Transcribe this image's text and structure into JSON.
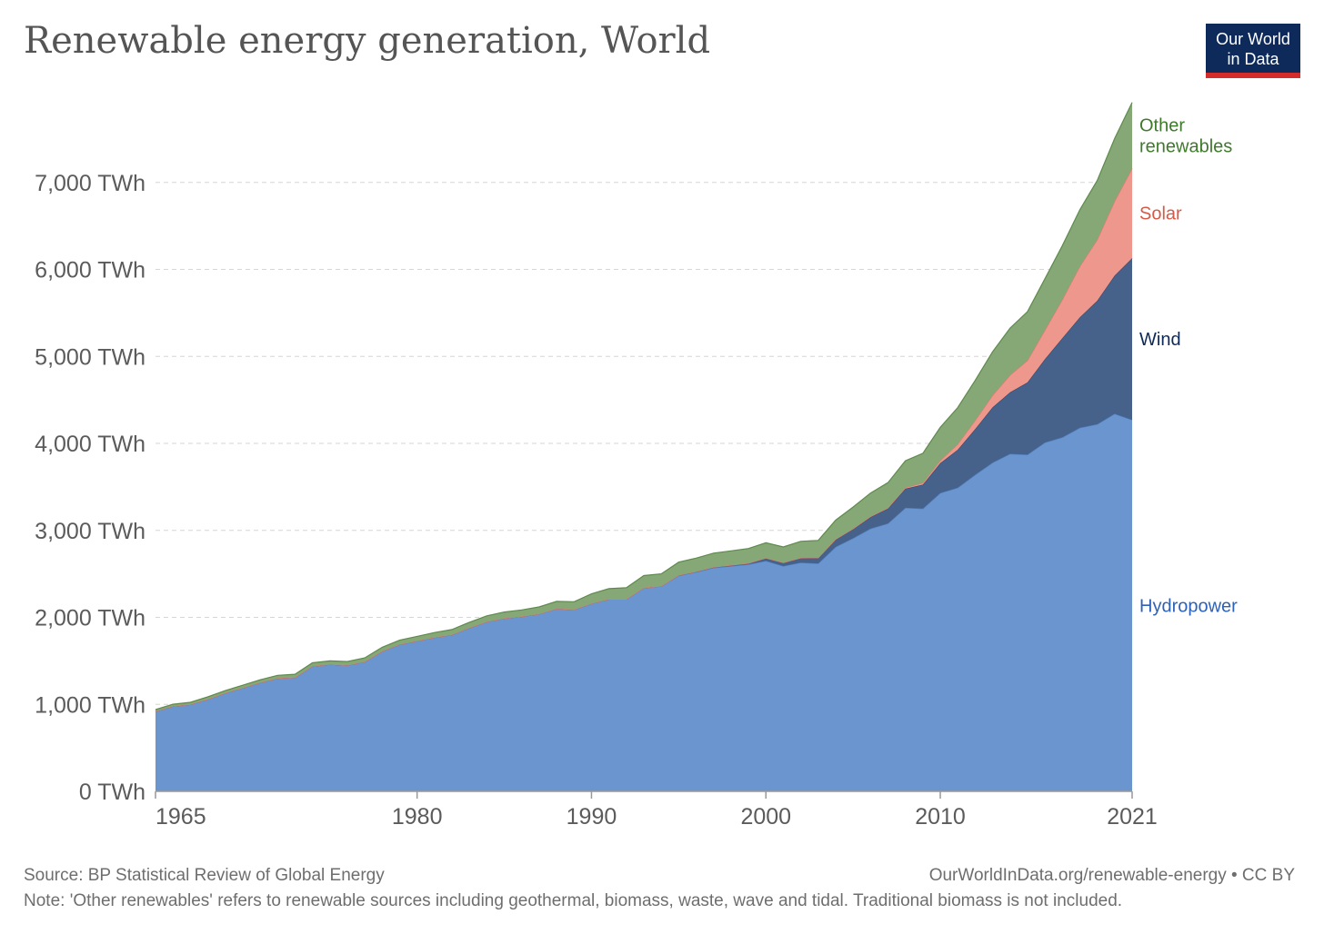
{
  "title": "Renewable energy generation, World",
  "logo": {
    "line1": "Our World",
    "line2": "in Data",
    "bg_color": "#0e2a5a",
    "accent_color": "#d42b2b"
  },
  "footer": {
    "source": "Source: BP Statistical Review of Global Energy",
    "url": "OurWorldInData.org/renewable-energy • CC BY",
    "note": "Note: 'Other renewables' refers to renewable sources including geothermal, biomass, waste, wave and tidal. Traditional biomass is not included."
  },
  "chart_data": {
    "type": "area",
    "stacked": true,
    "grid": true,
    "x_ticks": [
      1965,
      1980,
      1990,
      2000,
      2010,
      2021
    ],
    "x_tick_labels": [
      "1965",
      "1980",
      "1990",
      "2000",
      "2010",
      "2021"
    ],
    "y_ticks": [
      0,
      1000,
      2000,
      3000,
      4000,
      5000,
      6000,
      7000
    ],
    "y_tick_labels": [
      "0 TWh",
      "1,000 TWh",
      "2,000 TWh",
      "3,000 TWh",
      "4,000 TWh",
      "5,000 TWh",
      "6,000 TWh",
      "7,000 TWh"
    ],
    "xlim": [
      1965,
      2021
    ],
    "ylim": [
      0,
      8000
    ],
    "legend_placement": "right, inline labels",
    "x": [
      1965,
      1966,
      1967,
      1968,
      1969,
      1970,
      1971,
      1972,
      1973,
      1974,
      1975,
      1976,
      1977,
      1978,
      1979,
      1980,
      1981,
      1982,
      1983,
      1984,
      1985,
      1986,
      1987,
      1988,
      1989,
      1990,
      1991,
      1992,
      1993,
      1994,
      1995,
      1996,
      1997,
      1998,
      1999,
      2000,
      2001,
      2002,
      2003,
      2004,
      2005,
      2006,
      2007,
      2008,
      2009,
      2010,
      2011,
      2012,
      2013,
      2014,
      2015,
      2016,
      2017,
      2018,
      2019,
      2020,
      2021
    ],
    "series": [
      {
        "name": "Hydropower",
        "color": "#6a95ce",
        "stroke": "#4f7fc0",
        "label_color": "#2e62b8",
        "values": [
          920,
          980,
          1000,
          1060,
          1130,
          1190,
          1250,
          1300,
          1310,
          1440,
          1460,
          1450,
          1490,
          1610,
          1690,
          1730,
          1770,
          1800,
          1880,
          1950,
          1990,
          2010,
          2040,
          2100,
          2090,
          2160,
          2210,
          2210,
          2340,
          2360,
          2480,
          2520,
          2570,
          2590,
          2610,
          2650,
          2590,
          2630,
          2620,
          2810,
          2910,
          3020,
          3080,
          3260,
          3250,
          3430,
          3490,
          3640,
          3780,
          3880,
          3870,
          4010,
          4070,
          4180,
          4220,
          4340,
          4270
        ]
      },
      {
        "name": "Wind",
        "color": "#46628a",
        "stroke": "#334c70",
        "label_color": "#0e2a5a",
        "values": [
          0,
          0,
          0,
          0,
          0,
          0,
          0,
          0,
          0,
          0,
          0,
          0,
          0,
          0,
          0,
          0,
          0,
          0,
          0,
          0,
          0,
          0,
          0,
          0,
          0,
          0,
          0,
          0,
          0,
          0,
          5,
          6,
          8,
          10,
          12,
          31,
          38,
          52,
          63,
          85,
          104,
          133,
          171,
          219,
          276,
          342,
          437,
          524,
          635,
          707,
          831,
          958,
          1140,
          1270,
          1420,
          1590,
          1860
        ]
      },
      {
        "name": "Solar",
        "color": "#ee978c",
        "stroke": "#e07b70",
        "label_color": "#d65a48",
        "values": [
          0,
          0,
          0,
          0,
          0,
          0,
          0,
          0,
          0,
          0,
          0,
          0,
          0,
          0,
          0,
          0,
          0,
          0,
          0,
          0,
          0,
          0,
          0,
          0,
          0,
          0,
          0,
          0,
          0,
          0,
          0,
          0,
          0,
          0,
          0,
          1,
          1,
          2,
          2,
          3,
          4,
          6,
          8,
          12,
          20,
          32,
          65,
          100,
          139,
          198,
          253,
          334,
          444,
          585,
          701,
          855,
          1030
        ]
      },
      {
        "name": "Other renewables",
        "color": "#86a876",
        "stroke": "#5f8a4e",
        "label_color": "#3f7a2c",
        "values": [
          20,
          22,
          24,
          26,
          28,
          30,
          32,
          34,
          36,
          38,
          40,
          42,
          44,
          46,
          48,
          52,
          56,
          60,
          64,
          68,
          72,
          76,
          80,
          84,
          90,
          110,
          120,
          130,
          140,
          140,
          150,
          155,
          160,
          165,
          170,
          175,
          180,
          190,
          200,
          220,
          250,
          270,
          290,
          310,
          340,
          380,
          420,
          460,
          500,
          540,
          560,
          590,
          620,
          650,
          680,
          720,
          760
        ]
      }
    ],
    "inline_labels": [
      {
        "series": "Other renewables",
        "lines": [
          "Other",
          "renewables"
        ]
      },
      {
        "series": "Solar",
        "lines": [
          "Solar"
        ]
      },
      {
        "series": "Wind",
        "lines": [
          "Wind"
        ]
      },
      {
        "series": "Hydropower",
        "lines": [
          "Hydropower"
        ]
      }
    ]
  }
}
